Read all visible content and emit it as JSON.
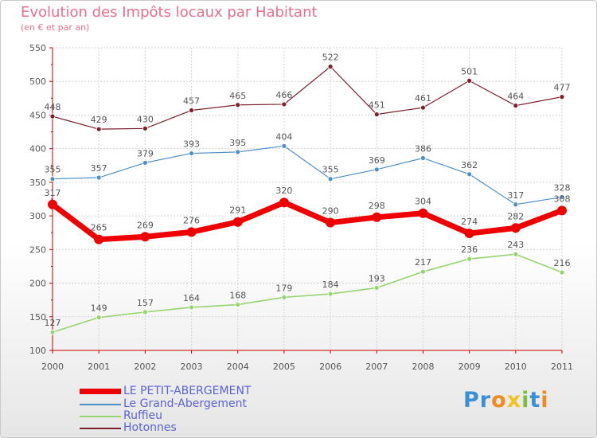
{
  "title": "Evolution des Impôts locaux par Habitant",
  "subtitle": "(en € et par an)",
  "logo": {
    "text": "Proxiti",
    "letters": [
      "P",
      "r",
      "o",
      "x",
      "i",
      "t",
      "i"
    ],
    "colors": [
      "#3a8fd6",
      "#3a8fd6",
      "#f28a1e",
      "#f2c21e",
      "#7dbf3a",
      "#3a8fd6",
      "#f28a1e"
    ]
  },
  "chart_data": {
    "type": "line",
    "title": "Evolution des Impôts locaux par Habitant",
    "subtitle": "(en € et par an)",
    "xlabel": "",
    "ylabel": "",
    "x": [
      2000,
      2001,
      2002,
      2003,
      2004,
      2005,
      2006,
      2007,
      2008,
      2009,
      2010,
      2011
    ],
    "xtick_labels": [
      "2000",
      "2001",
      "2002",
      "2003",
      "2004",
      "2005",
      "2006",
      "2007",
      "2008",
      "2009",
      "2010",
      "2011"
    ],
    "ylim": [
      100,
      550
    ],
    "yticks": [
      100,
      150,
      200,
      250,
      300,
      350,
      400,
      450,
      500,
      550
    ],
    "grid": true,
    "legend_position": "bottom-left",
    "series": [
      {
        "name": "Hotonnes",
        "color": "#7a1f2b",
        "width": 1.2,
        "marker": 3,
        "values": [
          448,
          429,
          430,
          457,
          465,
          466,
          522,
          451,
          461,
          501,
          464,
          477
        ]
      },
      {
        "name": "Le Grand-Abergement",
        "color": "#4f8fc8",
        "width": 1.2,
        "marker": 3,
        "values": [
          355,
          357,
          379,
          393,
          395,
          404,
          355,
          369,
          386,
          362,
          317,
          328
        ]
      },
      {
        "name": "Ruffieu",
        "color": "#96d46f",
        "width": 1.6,
        "marker": 3,
        "values": [
          127,
          149,
          157,
          164,
          168,
          179,
          184,
          193,
          217,
          236,
          243,
          216
        ]
      },
      {
        "name": "LE PETIT-ABERGEMENT",
        "color": "#ee0000",
        "width": 7,
        "marker": 6,
        "values": [
          317,
          265,
          269,
          276,
          291,
          320,
          290,
          298,
          304,
          274,
          282,
          308
        ]
      }
    ]
  },
  "legend": [
    {
      "name": "LE PETIT-ABERGEMENT",
      "color": "#ee0000",
      "thickness": 7
    },
    {
      "name": "Le Grand-Abergement",
      "color": "#4f8fc8",
      "thickness": 2
    },
    {
      "name": "Ruffieu",
      "color": "#96d46f",
      "thickness": 2
    },
    {
      "name": "Hotonnes",
      "color": "#7a1f2b",
      "thickness": 2
    }
  ]
}
